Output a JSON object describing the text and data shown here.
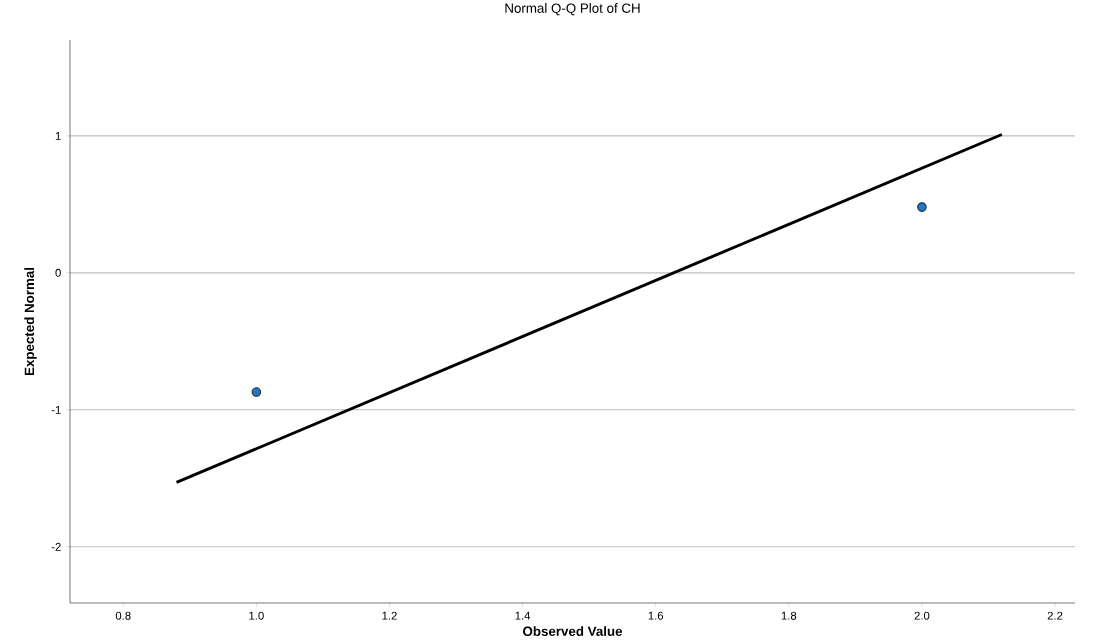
{
  "chart_data": {
    "type": "scatter",
    "title": "Normal Q-Q Plot of CH",
    "xlabel": "Observed Value",
    "ylabel": "Expected Normal",
    "series": [
      {
        "color": "#1f78c8",
        "x": [
          1.0,
          2.0
        ],
        "values": [
          -0.87,
          0.48
        ],
        "marker": "circle"
      },
      {
        "type": "line",
        "color": "#000000",
        "x": [
          0.88,
          2.12
        ],
        "values": [
          -1.53,
          1.01
        ],
        "marker": "none"
      }
    ],
    "xlim": [
      0.72,
      2.23
    ],
    "ylim": [
      -2.41,
      1.7
    ],
    "xticks": [
      {
        "value": 0.8,
        "label": "0.8"
      },
      {
        "value": 1.0,
        "label": "1.0"
      },
      {
        "value": 1.2,
        "label": "1.2"
      },
      {
        "value": 1.4,
        "label": "1.4"
      },
      {
        "value": 1.6,
        "label": "1.6"
      },
      {
        "value": 1.8,
        "label": "1.8"
      },
      {
        "value": 2.0,
        "label": "2.0"
      },
      {
        "value": 2.2,
        "label": "2.2"
      }
    ],
    "yticks": [
      -2,
      -1,
      0,
      1
    ],
    "grid": "y"
  }
}
